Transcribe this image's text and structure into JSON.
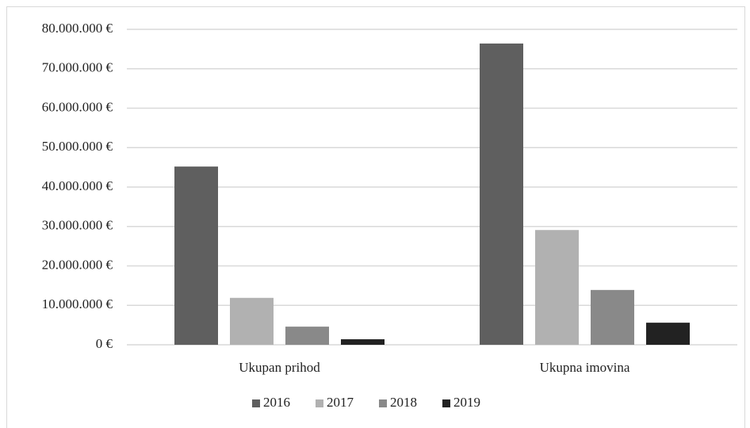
{
  "chart_data": {
    "type": "bar",
    "categories": [
      "Ukupan prihod",
      "Ukupna imovina"
    ],
    "series": [
      {
        "name": "2016",
        "color": "#5f5f5f",
        "values": [
          45200000,
          76400000
        ]
      },
      {
        "name": "2017",
        "color": "#b1b1b1",
        "values": [
          11900000,
          29100000
        ]
      },
      {
        "name": "2018",
        "color": "#898989",
        "values": [
          4600000,
          13900000
        ]
      },
      {
        "name": "2019",
        "color": "#222222",
        "values": [
          1400000,
          5600000
        ]
      }
    ],
    "ylim": [
      0,
      80000000
    ],
    "yticks": [
      {
        "value": 0,
        "label": "0 €"
      },
      {
        "value": 10000000,
        "label": "10.000.000 €"
      },
      {
        "value": 20000000,
        "label": "20.000.000 €"
      },
      {
        "value": 30000000,
        "label": "30.000.000 €"
      },
      {
        "value": 40000000,
        "label": "40.000.000 €"
      },
      {
        "value": 50000000,
        "label": "50.000.000 €"
      },
      {
        "value": 60000000,
        "label": "60.000.000 €"
      },
      {
        "value": 70000000,
        "label": "70.000.000 €"
      },
      {
        "value": 80000000,
        "label": "80.000.000 €"
      }
    ],
    "grid": true,
    "legend": "bottom"
  }
}
